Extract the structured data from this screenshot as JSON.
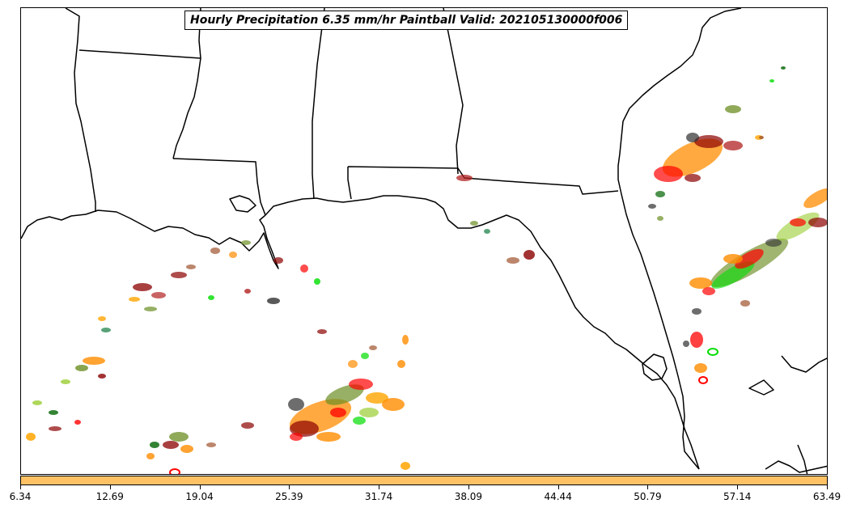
{
  "title": "Hourly Precipitation 6.35 mm/hr Paintball Valid: 202105130000f006",
  "colorbar": {
    "color": "#fec265",
    "ticks": [
      "6.34",
      "12.69",
      "19.04",
      "25.39",
      "31.74",
      "38.09",
      "44.44",
      "50.79",
      "57.14",
      "63.49"
    ]
  },
  "map": {
    "region": "Gulf of Mexico / U.S. Southeast",
    "features": [
      "coastline",
      "state-borders"
    ],
    "paintball_colors": [
      "#8b0000",
      "#ff0000",
      "#ff8c00",
      "#ffa500",
      "#6b8e23",
      "#9acd32",
      "#00dd00",
      "#006400",
      "#2f2f2f",
      "#a0522d",
      "#b22222"
    ]
  }
}
